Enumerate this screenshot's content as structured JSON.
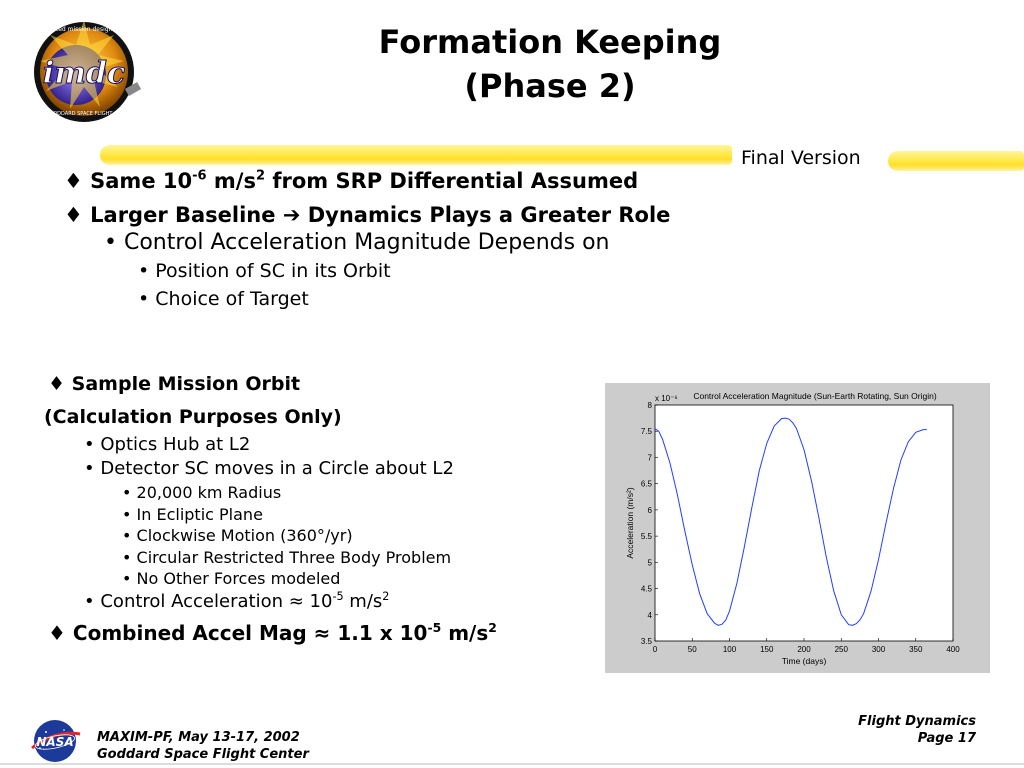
{
  "header": {
    "title_line1": "Formation Keeping",
    "title_line2": "(Phase 2)",
    "status_label": "Final Version",
    "logo_text": "integrated mission design center",
    "logo_sub": "NASA GODDARD SPACE FLIGHT CENTER",
    "logo_mark": "imdc"
  },
  "bullets_top": {
    "b1_pre": "Same 10",
    "b1_exp1": "-6",
    "b1_mid": " m/s",
    "b1_exp2": "2",
    "b1_post": " from SRP Differential Assumed",
    "b2_pre": "Larger Baseline ",
    "b2_post": " Dynamics Plays a Greater Role",
    "b2_sub": "Control Acceleration Magnitude Depends on",
    "b2_sub_items": [
      "Position of SC in its Orbit",
      "Choice of Target"
    ]
  },
  "bullets_bottom": {
    "s1_line1": "Sample Mission Orbit",
    "s1_line2": "(Calculation Purposes Only)",
    "items": [
      "Optics Hub at L2",
      "Detector SC moves in a Circle about L2"
    ],
    "sub_items": [
      "20,000 km Radius",
      "In Ecliptic Plane",
      "Clockwise Motion (360°/yr)",
      "Circular Restricted Three Body Problem",
      "No Other Forces modeled"
    ],
    "control_pre": "Control Acceleration ≈ 10",
    "control_exp": "-5",
    "control_mid": " m/s",
    "control_exp2": "2",
    "combined_pre": "Combined Accel Mag ≈ 1.1 x 10",
    "combined_exp": "-5",
    "combined_mid": " m/s",
    "combined_exp2": "2"
  },
  "chart_data": {
    "type": "line",
    "title": "Control Acceleration Magnitude (Sun-Earth Rotating, Sun Origin)",
    "xlabel": "Time (days)",
    "ylabel": "Acceleration (m/s²)",
    "y_multiplier": "x 10⁻⁶",
    "xlim": [
      0,
      400
    ],
    "ylim": [
      3.5,
      8
    ],
    "xticks": [
      "0",
      "50",
      "100",
      "150",
      "200",
      "250",
      "300",
      "350",
      "400"
    ],
    "yticks": [
      "3.5",
      "4",
      "4.5",
      "5",
      "5.5",
      "6",
      "6.5",
      "7",
      "7.5",
      "8"
    ],
    "series": [
      {
        "color": "#1f3fff",
        "x": [
          0,
          5,
          10,
          20,
          30,
          40,
          50,
          60,
          70,
          80,
          85,
          90,
          95,
          100,
          110,
          120,
          130,
          140,
          150,
          160,
          170,
          175,
          180,
          185,
          190,
          200,
          210,
          220,
          230,
          240,
          250,
          260,
          265,
          270,
          275,
          280,
          290,
          300,
          310,
          320,
          330,
          340,
          350,
          360,
          365
        ],
        "y": [
          7.55,
          7.5,
          7.35,
          6.9,
          6.3,
          5.6,
          4.95,
          4.4,
          4.02,
          3.84,
          3.8,
          3.82,
          3.9,
          4.07,
          4.6,
          5.3,
          6.05,
          6.75,
          7.27,
          7.6,
          7.74,
          7.75,
          7.73,
          7.66,
          7.55,
          7.15,
          6.55,
          5.85,
          5.1,
          4.45,
          4.0,
          3.81,
          3.8,
          3.83,
          3.9,
          4.02,
          4.45,
          5.05,
          5.75,
          6.4,
          6.95,
          7.3,
          7.48,
          7.53,
          7.53
        ]
      }
    ],
    "grid": false,
    "legend": "none"
  },
  "footer": {
    "left_line1": "MAXIM-PF, May 13-17, 2002",
    "left_line2": "Goddard Space Flight Center",
    "right_line1": "Flight Dynamics",
    "right_line2": "Page 17",
    "nasa_label": "NASA"
  }
}
